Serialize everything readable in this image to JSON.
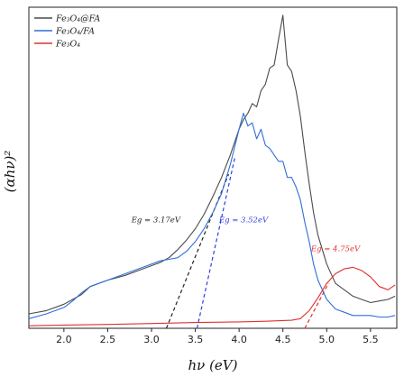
{
  "chart_data": {
    "type": "line",
    "xlabel": "hν (eV)",
    "ylabel": "(αhν)²",
    "xlim": [
      1.6,
      5.8
    ],
    "ylim": [
      0,
      1.0
    ],
    "xticks": [
      2.0,
      2.5,
      3.0,
      3.5,
      4.0,
      4.5,
      5.0,
      5.5
    ],
    "xtick_labels": [
      "2.0",
      "2.5",
      "3.0",
      "3.5",
      "4.0",
      "4.5",
      "5.0",
      "5.5"
    ],
    "grid": false,
    "legend_position": "top-left",
    "series": [
      {
        "name": "Fe₃O₄@FA",
        "color": "#4a4a4a",
        "x": [
          1.6,
          1.8,
          2.0,
          2.1,
          2.2,
          2.3,
          2.5,
          2.7,
          2.9,
          3.1,
          3.2,
          3.3,
          3.4,
          3.5,
          3.6,
          3.7,
          3.8,
          3.9,
          4.0,
          4.05,
          4.1,
          4.15,
          4.2,
          4.25,
          4.3,
          4.35,
          4.4,
          4.45,
          4.5,
          4.55,
          4.6,
          4.65,
          4.7,
          4.75,
          4.8,
          4.85,
          4.9,
          5.0,
          5.1,
          5.2,
          5.3,
          5.4,
          5.5,
          5.6,
          5.7,
          5.78
        ],
        "y": [
          0.045,
          0.055,
          0.075,
          0.09,
          0.105,
          0.13,
          0.15,
          0.165,
          0.185,
          0.205,
          0.22,
          0.245,
          0.275,
          0.31,
          0.355,
          0.41,
          0.47,
          0.54,
          0.62,
          0.65,
          0.67,
          0.7,
          0.69,
          0.74,
          0.76,
          0.81,
          0.82,
          0.9,
          0.975,
          0.82,
          0.8,
          0.74,
          0.66,
          0.55,
          0.45,
          0.36,
          0.29,
          0.2,
          0.14,
          0.12,
          0.1,
          0.09,
          0.08,
          0.085,
          0.09,
          0.1
        ]
      },
      {
        "name": "Fe₃O₄/FA",
        "color": "#2f6fd6",
        "x": [
          1.6,
          1.8,
          2.0,
          2.1,
          2.2,
          2.3,
          2.5,
          2.7,
          2.9,
          3.1,
          3.2,
          3.3,
          3.4,
          3.5,
          3.6,
          3.7,
          3.8,
          3.9,
          4.0,
          4.05,
          4.1,
          4.15,
          4.2,
          4.25,
          4.3,
          4.35,
          4.4,
          4.45,
          4.5,
          4.55,
          4.6,
          4.65,
          4.7,
          4.75,
          4.8,
          4.85,
          4.9,
          5.0,
          5.1,
          5.2,
          5.3,
          5.4,
          5.5,
          5.6,
          5.7,
          5.78
        ],
        "y": [
          0.03,
          0.045,
          0.065,
          0.085,
          0.11,
          0.13,
          0.15,
          0.17,
          0.19,
          0.21,
          0.215,
          0.22,
          0.24,
          0.27,
          0.31,
          0.36,
          0.42,
          0.51,
          0.62,
          0.67,
          0.63,
          0.64,
          0.59,
          0.62,
          0.57,
          0.56,
          0.54,
          0.52,
          0.52,
          0.47,
          0.47,
          0.44,
          0.4,
          0.33,
          0.27,
          0.2,
          0.15,
          0.09,
          0.06,
          0.05,
          0.04,
          0.04,
          0.04,
          0.035,
          0.035,
          0.04
        ]
      },
      {
        "name": "Fe₃O₄",
        "color": "#e03030",
        "x": [
          1.6,
          2.0,
          2.5,
          3.0,
          3.5,
          4.0,
          4.3,
          4.6,
          4.7,
          4.8,
          4.9,
          5.0,
          5.1,
          5.2,
          5.3,
          5.4,
          5.5,
          5.6,
          5.7,
          5.78
        ],
        "y": [
          0.008,
          0.01,
          0.012,
          0.015,
          0.018,
          0.02,
          0.022,
          0.025,
          0.03,
          0.055,
          0.095,
          0.14,
          0.17,
          0.185,
          0.19,
          0.18,
          0.16,
          0.13,
          0.12,
          0.135
        ]
      }
    ],
    "tangents": [
      {
        "color": "#222222",
        "x": [
          3.17,
          3.88
        ],
        "y": [
          0.0,
          0.48
        ]
      },
      {
        "color": "#2f3fe0",
        "x": [
          3.52,
          3.95
        ],
        "y": [
          0.0,
          0.53
        ]
      },
      {
        "color": "#e03030",
        "x": [
          4.75,
          5.02
        ],
        "y": [
          0.0,
          0.14
        ]
      }
    ],
    "annotations": [
      {
        "text": "Eg = 3.17eV",
        "x": 3.05,
        "y": 0.33,
        "color": "#222222"
      },
      {
        "text": "Eg = 3.52eV",
        "x": 4.05,
        "y": 0.33,
        "color": "#2f3fe0"
      },
      {
        "text": "Eg = 4.75eV",
        "x": 5.1,
        "y": 0.24,
        "color": "#e03030"
      }
    ]
  }
}
